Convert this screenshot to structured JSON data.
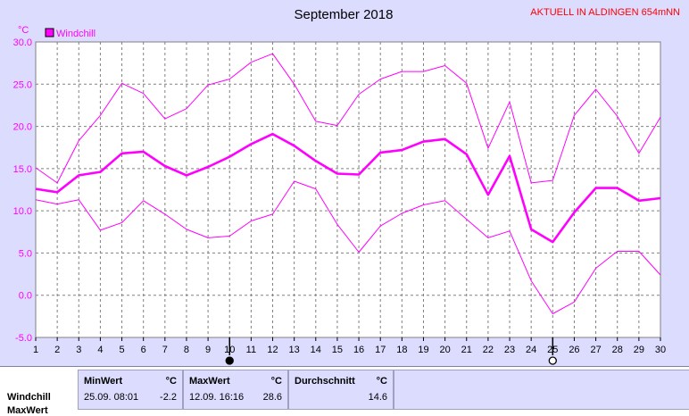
{
  "header": {
    "title": "September 2018",
    "station": "AKTUELL IN ALDINGEN 654mNN"
  },
  "legend": {
    "label": "Windchill",
    "color": "#ff00ff"
  },
  "chart_data": {
    "type": "line",
    "title": "September 2018",
    "ylabel": "°C",
    "xlabel": "",
    "ylim": [
      -5,
      30
    ],
    "yticks": [
      "30.0",
      "25.0",
      "20.0",
      "15.0",
      "10.0",
      "5.0",
      "0.0",
      "-5.0"
    ],
    "x": [
      1,
      2,
      3,
      4,
      5,
      6,
      7,
      8,
      9,
      10,
      11,
      12,
      13,
      14,
      15,
      16,
      17,
      18,
      19,
      20,
      21,
      22,
      23,
      24,
      25,
      26,
      27,
      28,
      29,
      30
    ],
    "grid": true,
    "legend_position": "top-left",
    "series": [
      {
        "name": "Windchill",
        "role": "max",
        "color": "#ff00ff",
        "values": [
          15.1,
          13.3,
          18.3,
          21.3,
          25.1,
          23.9,
          20.9,
          22.1,
          24.9,
          25.6,
          27.6,
          28.6,
          25.0,
          20.6,
          20.1,
          23.8,
          25.6,
          26.5,
          26.5,
          27.2,
          25.1,
          17.4,
          22.9,
          13.3,
          13.6,
          21.3,
          24.4,
          21.2,
          16.8,
          21.1
        ]
      },
      {
        "name": "Windchill",
        "role": "mean",
        "color": "#ff00ff",
        "values": [
          12.6,
          12.2,
          14.2,
          14.6,
          16.8,
          17.0,
          15.3,
          14.2,
          15.2,
          16.4,
          17.9,
          19.1,
          17.7,
          15.9,
          14.4,
          14.3,
          16.9,
          17.2,
          18.2,
          18.5,
          16.7,
          11.9,
          16.5,
          7.8,
          6.3,
          9.8,
          12.7,
          12.7,
          11.2,
          11.5
        ]
      },
      {
        "name": "Windchill",
        "role": "min",
        "color": "#ff00ff",
        "values": [
          11.3,
          10.8,
          11.3,
          7.7,
          8.6,
          11.2,
          9.6,
          7.8,
          6.8,
          7.0,
          8.8,
          9.6,
          13.5,
          12.6,
          8.4,
          5.1,
          8.2,
          9.7,
          10.7,
          11.2,
          9.0,
          6.8,
          7.6,
          1.7,
          -2.2,
          -0.8,
          3.2,
          5.2,
          5.2,
          2.4
        ]
      }
    ],
    "markers": [
      {
        "day": 10,
        "symbol": "new-moon"
      },
      {
        "day": 25,
        "symbol": "full-moon"
      }
    ]
  },
  "stats": {
    "row_labels": [
      "Windchill",
      "MaxWert"
    ],
    "min": {
      "header": "MinWert",
      "unit": "°C",
      "datetime": "25.09.  08:01",
      "value": "-2.2"
    },
    "max": {
      "header": "MaxWert",
      "unit": "°C",
      "datetime": "12.09.  16:16",
      "value": "28.6"
    },
    "avg": {
      "header": "Durchschnitt",
      "unit": "°C",
      "value": "14.6"
    }
  }
}
